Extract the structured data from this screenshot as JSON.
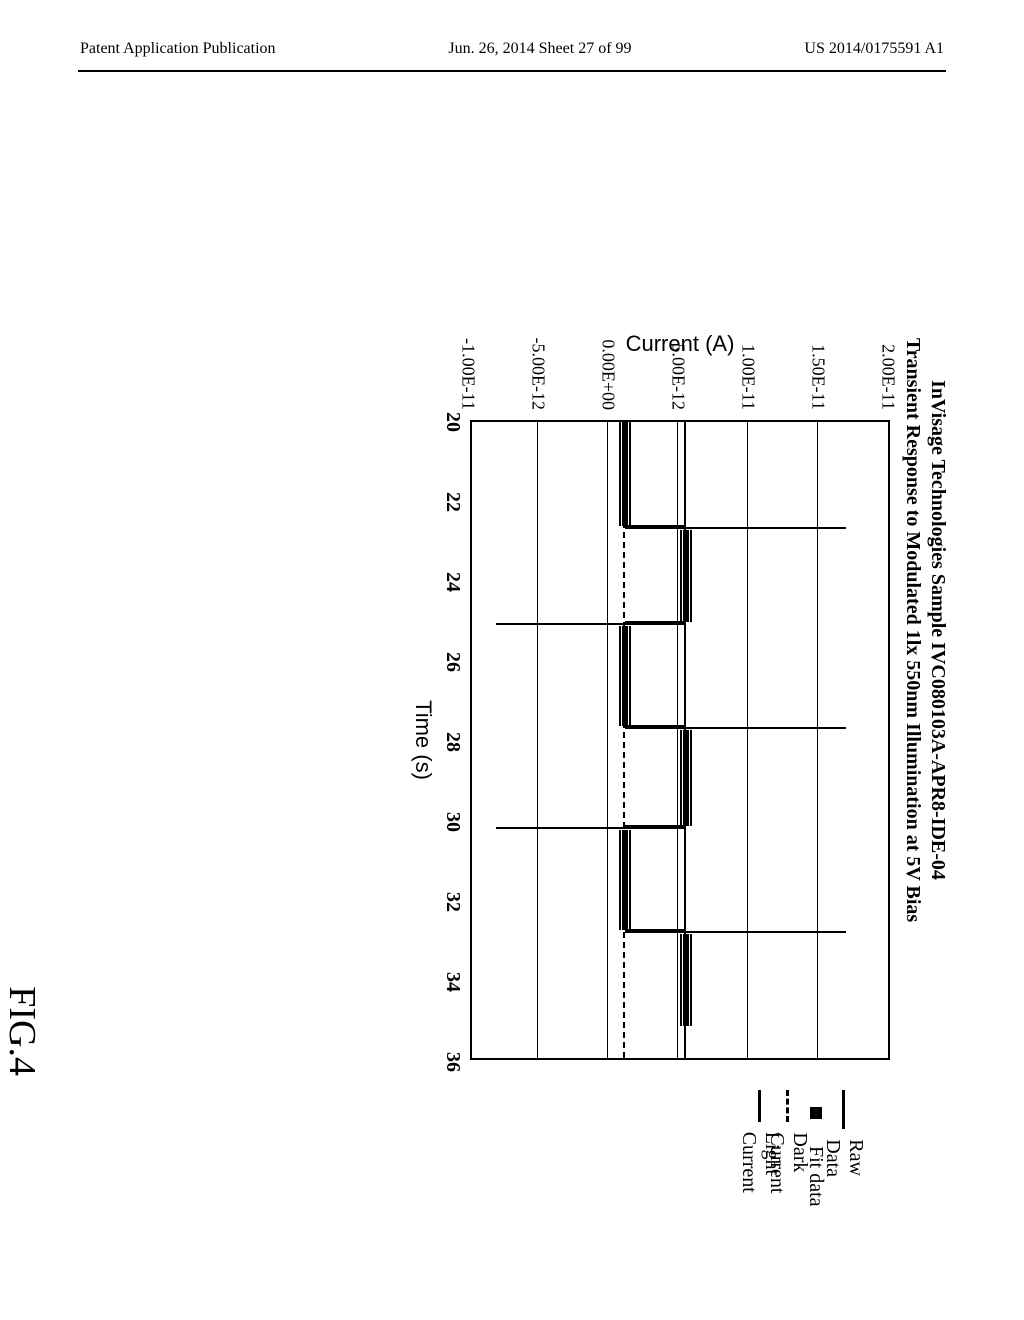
{
  "header": {
    "left": "Patent Application Publication",
    "center": "Jun. 26, 2014  Sheet 27 of 99",
    "right": "US 2014/0175591 A1"
  },
  "chart": {
    "type": "line",
    "title_line1": "InVisage Technologies Sample IVC080103A-APR8-IDE-04",
    "title_line2": "Transient Response to Modulated 1lx 550nm Illumination at 5V Bias",
    "xlabel": "Time (s)",
    "ylabel": "Current (A)",
    "xlim": [
      20,
      36
    ],
    "ylim": [
      -1e-11,
      2e-11
    ],
    "yticks": [
      "2.00E-11",
      "1.50E-11",
      "1.00E-11",
      "5.00E-12",
      "0.00E+00",
      "-5.00E-12",
      "-1.00E-11"
    ],
    "ytick_vals": [
      2e-11,
      1.5e-11,
      1e-11,
      5e-12,
      0,
      -5e-12,
      -1e-11
    ],
    "xticks": [
      "20",
      "22",
      "24",
      "26",
      "28",
      "30",
      "32",
      "34",
      "36"
    ],
    "xtick_vals": [
      20,
      22,
      24,
      26,
      28,
      30,
      32,
      34,
      36
    ],
    "dark_current": 1.2e-12,
    "light_current": 5.6e-12,
    "raw_dark_segments": [
      [
        20.0,
        22.6
      ],
      [
        25.1,
        27.6
      ],
      [
        30.2,
        32.7
      ]
    ],
    "raw_light_segments": [
      [
        22.7,
        25.0
      ],
      [
        27.7,
        30.1
      ],
      [
        32.8,
        35.1
      ]
    ],
    "spikes_up": [
      22.65,
      27.65,
      32.75
    ],
    "spikes_down": [
      25.05,
      30.15
    ],
    "spike_up_peak": 1.7e-11,
    "spike_down_trough": -8e-12,
    "grid_color": "#000000",
    "background_color": "#ffffff",
    "title_fontsize": 20,
    "label_fontsize": 22,
    "tick_fontsize": 18
  },
  "legend": {
    "items": [
      "Raw Data",
      "Fit data",
      "Dark Current",
      "Light Current"
    ]
  },
  "figure_label": "FIG.4"
}
